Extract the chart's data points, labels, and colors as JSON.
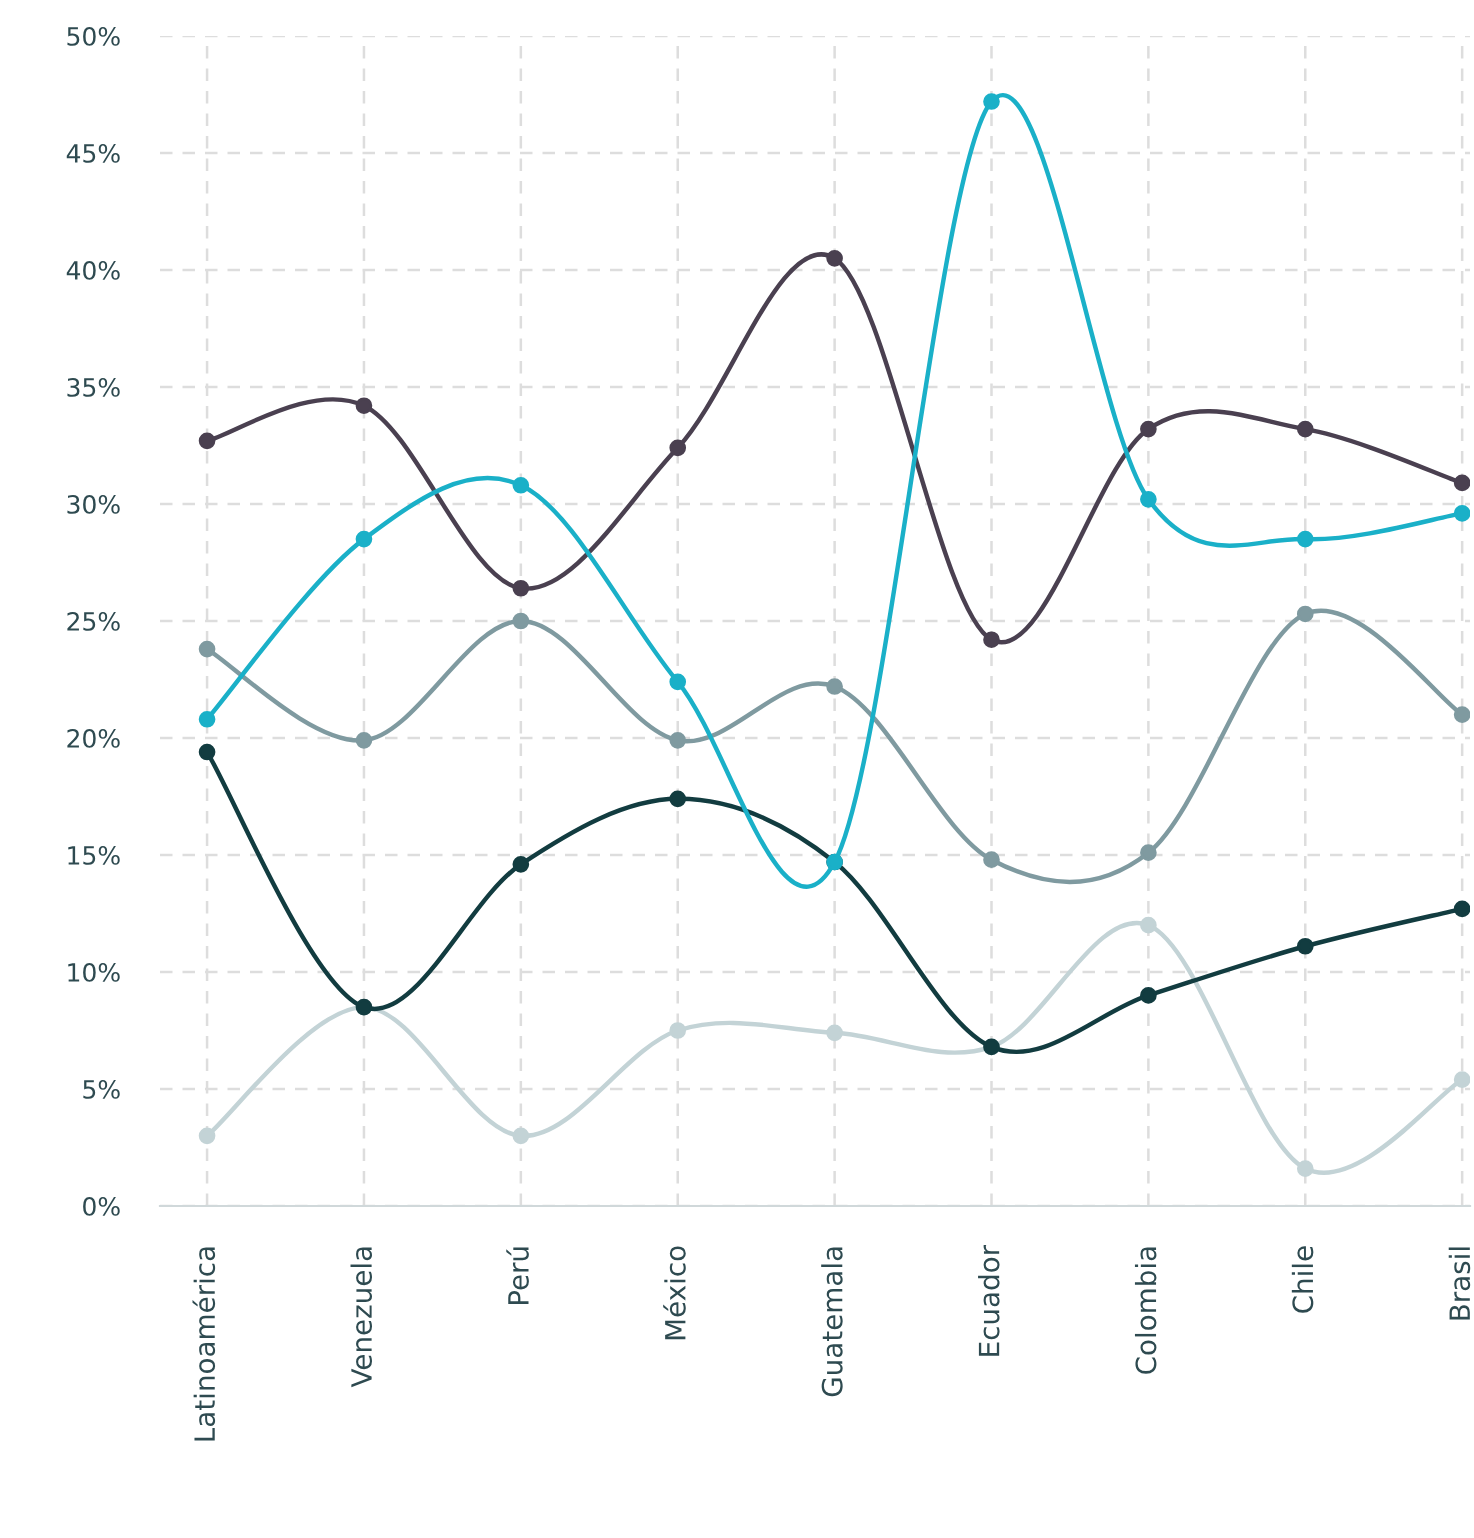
{
  "chart_data": {
    "type": "line",
    "categories": [
      "Latinoamérica",
      "Venezuela",
      "Perú",
      "México",
      "Guatemala",
      "Ecuador",
      "Colombia",
      "Chile",
      "Brasil"
    ],
    "series": [
      {
        "color": "#c3d3d6",
        "values": [
          3.0,
          8.5,
          3.0,
          7.5,
          7.4,
          6.8,
          12.0,
          1.6,
          5.4
        ]
      },
      {
        "color": "#7f9aa0",
        "values": [
          23.8,
          19.9,
          25.0,
          19.9,
          22.2,
          14.8,
          15.1,
          25.3,
          21.0
        ]
      },
      {
        "color": "#123c40",
        "values": [
          19.4,
          8.5,
          14.6,
          17.4,
          14.7,
          6.8,
          9.0,
          11.1,
          12.7
        ]
      },
      {
        "color": "#4a4050",
        "values": [
          32.7,
          34.2,
          26.4,
          32.4,
          40.5,
          24.2,
          33.2,
          33.2,
          30.9
        ]
      },
      {
        "color": "#1ab0c8",
        "values": [
          20.8,
          28.5,
          30.8,
          22.4,
          14.7,
          47.2,
          30.2,
          28.5,
          29.6
        ]
      }
    ],
    "ylim": [
      0,
      50
    ],
    "yticks": [
      {
        "value": 0,
        "label": "0%"
      },
      {
        "value": 5,
        "label": "5%"
      },
      {
        "value": 10,
        "label": "10%"
      },
      {
        "value": 15,
        "label": "15%"
      },
      {
        "value": 20,
        "label": "20%"
      },
      {
        "value": 25,
        "label": "25%"
      },
      {
        "value": 30,
        "label": "30%"
      },
      {
        "value": 35,
        "label": "35%"
      },
      {
        "value": 40,
        "label": "40%"
      },
      {
        "value": 45,
        "label": "45%"
      },
      {
        "value": 50,
        "label": "50%"
      }
    ],
    "grid": true,
    "marker": "circle",
    "legend": false
  }
}
